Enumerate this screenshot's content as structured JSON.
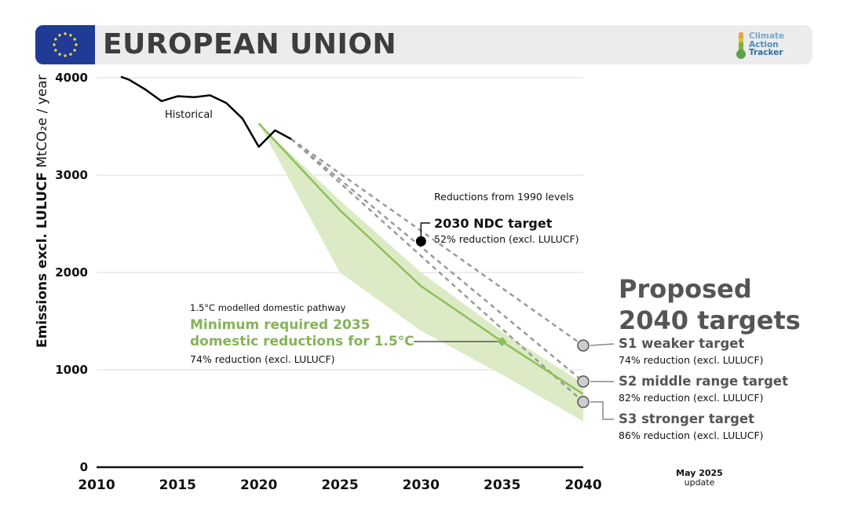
{
  "header": {
    "title": "EUROPEAN UNION",
    "logo_lines": [
      "Climate",
      "Action",
      "Tracker"
    ],
    "flag_color": "#1f3b95",
    "star_color": "#f6d233"
  },
  "update_label": [
    "May 2025",
    "update"
  ],
  "chart_data": {
    "type": "line",
    "ylabel_bold": "Emissions excl. LULUCF",
    "ylabel_rest": "MtCO₂e / year",
    "xlim": [
      2010,
      2040
    ],
    "ylim": [
      0,
      4000
    ],
    "x_ticks": [
      2010,
      2015,
      2020,
      2025,
      2030,
      2035,
      2040
    ],
    "y_ticks": [
      0,
      1000,
      2000,
      3000,
      4000
    ],
    "grid": true,
    "colors": {
      "historical": "#000000",
      "pathway": "#8cbf5a",
      "band": "#dcebc5",
      "targets": "#9a9a9a",
      "marker_fill": "#cccccc"
    },
    "historical": {
      "label": "Historical",
      "x": [
        2011.5,
        2012,
        2013,
        2014,
        2015,
        2016,
        2017,
        2018,
        2019,
        2020,
        2021,
        2022
      ],
      "y": [
        4010,
        3980,
        3880,
        3760,
        3810,
        3800,
        3820,
        3740,
        3580,
        3290,
        3460,
        3370
      ]
    },
    "pathway_15c": {
      "x": [
        2020,
        2025,
        2030,
        2035,
        2040
      ],
      "y": [
        3530,
        2640,
        1860,
        1290,
        750
      ]
    },
    "pathway_range": {
      "x": [
        2020,
        2025,
        2030,
        2035,
        2040
      ],
      "upper": [
        3530,
        2740,
        2000,
        1390,
        860
      ],
      "lower": [
        3530,
        2000,
        1400,
        950,
        470
      ]
    },
    "ndc_2030": {
      "x": 2030,
      "y": 2320,
      "label": "2030 NDC target",
      "detail": "52% reduction (excl. LULUCF)"
    },
    "reductions_note": "Reductions from 1990 levels",
    "pathway_annotation": {
      "x": 2035,
      "y": 1290,
      "small": "1.5°C modelled domestic pathway",
      "headline": [
        "Minimum required 2035",
        "domestic reductions for 1.5°C"
      ],
      "detail": "74% reduction (excl. LULUCF)"
    },
    "targets_title": [
      "Proposed",
      "2040 targets"
    ],
    "targets": [
      {
        "label": "S1 weaker target",
        "detail": "74% reduction (excl. LULUCF)",
        "x": 2040,
        "y": 1250
      },
      {
        "label": "S2 middle range target",
        "detail": "82% reduction (excl. LULUCF)",
        "x": 2040,
        "y": 880
      },
      {
        "label": "S3 stronger target",
        "detail": "86% reduction (excl. LULUCF)",
        "x": 2040,
        "y": 670
      }
    ],
    "dashed_start": {
      "x": 2022,
      "y": 3370
    }
  }
}
